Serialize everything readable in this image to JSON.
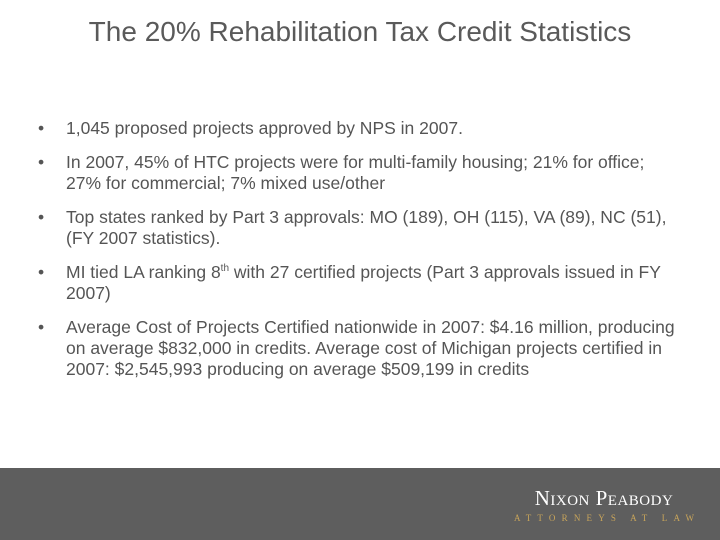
{
  "slide": {
    "title": "The 20% Rehabilitation Tax Credit Statistics",
    "bullet_marker": "•",
    "bullets": [
      {
        "text": "1,045 proposed projects approved by NPS in 2007."
      },
      {
        "text": "In 2007, 45% of HTC projects were for multi-family housing; 21% for office; 27% for commercial; 7% mixed use/other"
      },
      {
        "text": "Top states ranked by Part 3 approvals: MO (189), OH (115), VA (89), NC (51), (FY 2007 statistics)."
      },
      {
        "text_before": "MI tied LA ranking 8",
        "superscript": "th",
        "text_after": " with 27 certified projects  (Part 3 approvals issued in FY 2007)"
      },
      {
        "text": "Average Cost of Projects Certified nationwide in 2007: $4.16 million, producing on average $832,000 in credits.  Average cost of Michigan projects certified in 2007:  $2,545,993 producing on average $509,199 in credits"
      }
    ]
  },
  "footer": {
    "logo_name": "Nixon Peabody",
    "logo_tagline": "ATTORNEYS AT LAW",
    "background_color": "#5e5e5e",
    "tagline_color": "#c9a55a"
  }
}
